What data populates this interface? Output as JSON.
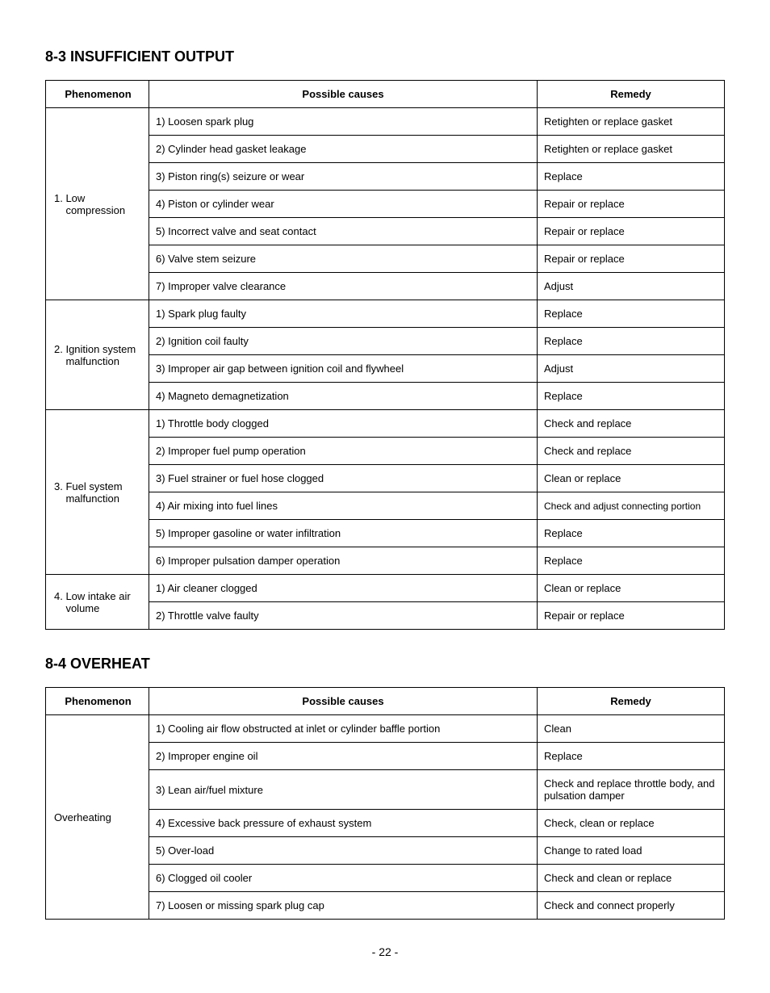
{
  "section1": {
    "heading": "8-3 INSUFFICIENT OUTPUT",
    "headers": {
      "phenomenon": "Phenomenon",
      "causes": "Possible causes",
      "remedy": "Remedy"
    },
    "groups": [
      {
        "phenomenon": "1. Low\n    compression",
        "rows": [
          {
            "cause": "1) Loosen spark plug",
            "remedy": "Retighten or replace gasket"
          },
          {
            "cause": "2) Cylinder head gasket leakage",
            "remedy": "Retighten or replace gasket"
          },
          {
            "cause": "3) Piston ring(s) seizure or wear",
            "remedy": "Replace"
          },
          {
            "cause": "4) Piston or cylinder wear",
            "remedy": "Repair or replace"
          },
          {
            "cause": "5) Incorrect valve and seat contact",
            "remedy": "Repair or replace"
          },
          {
            "cause": "6) Valve stem seizure",
            "remedy": "Repair or replace"
          },
          {
            "cause": "7) Improper valve clearance",
            "remedy": "Adjust"
          }
        ]
      },
      {
        "phenomenon": "2. Ignition system\n    malfunction",
        "rows": [
          {
            "cause": "1) Spark plug faulty",
            "remedy": "Replace"
          },
          {
            "cause": "2) Ignition coil faulty",
            "remedy": "Replace"
          },
          {
            "cause": "3) Improper air gap between ignition coil and flywheel",
            "remedy": "Adjust"
          },
          {
            "cause": "4) Magneto demagnetization",
            "remedy": "Replace"
          }
        ]
      },
      {
        "phenomenon": "3. Fuel system\n    malfunction",
        "rows": [
          {
            "cause": "1) Throttle body clogged",
            "remedy": "Check and replace"
          },
          {
            "cause": "2) Improper fuel pump operation",
            "remedy": "Check and replace"
          },
          {
            "cause": "3) Fuel strainer or fuel hose clogged",
            "remedy": "Clean or replace"
          },
          {
            "cause": "4) Air mixing into fuel lines",
            "remedy": "Check and adjust connecting portion",
            "remedy_small": true
          },
          {
            "cause": "5) Improper gasoline or water infiltration",
            "remedy": "Replace"
          },
          {
            "cause": "6) Improper pulsation damper operation",
            "remedy": "Replace"
          }
        ]
      },
      {
        "phenomenon": "4. Low intake air\n    volume",
        "rows": [
          {
            "cause": "1) Air cleaner clogged",
            "remedy": "Clean or replace"
          },
          {
            "cause": "2) Throttle valve faulty",
            "remedy": "Repair or replace"
          }
        ]
      }
    ]
  },
  "section2": {
    "heading": "8-4 OVERHEAT",
    "headers": {
      "phenomenon": "Phenomenon",
      "causes": "Possible causes",
      "remedy": "Remedy"
    },
    "groups": [
      {
        "phenomenon": "Overheating",
        "rows": [
          {
            "cause": "1) Cooling air flow obstructed at inlet or cylinder baffle portion",
            "remedy": "Clean"
          },
          {
            "cause": "2) Improper engine oil",
            "remedy": "Replace"
          },
          {
            "cause": "3) Lean air/fuel mixture",
            "remedy": "Check and replace throttle body, and pulsation damper"
          },
          {
            "cause": "4) Excessive back pressure of exhaust system",
            "remedy": "Check, clean or replace"
          },
          {
            "cause": "5) Over-load",
            "remedy": "Change to rated load"
          },
          {
            "cause": "6) Clogged oil cooler",
            "remedy": "Check and clean or replace"
          },
          {
            "cause": "7) Loosen or missing spark plug cap",
            "remedy": "Check and connect properly"
          }
        ]
      }
    ]
  },
  "page_number": "- 22 -"
}
